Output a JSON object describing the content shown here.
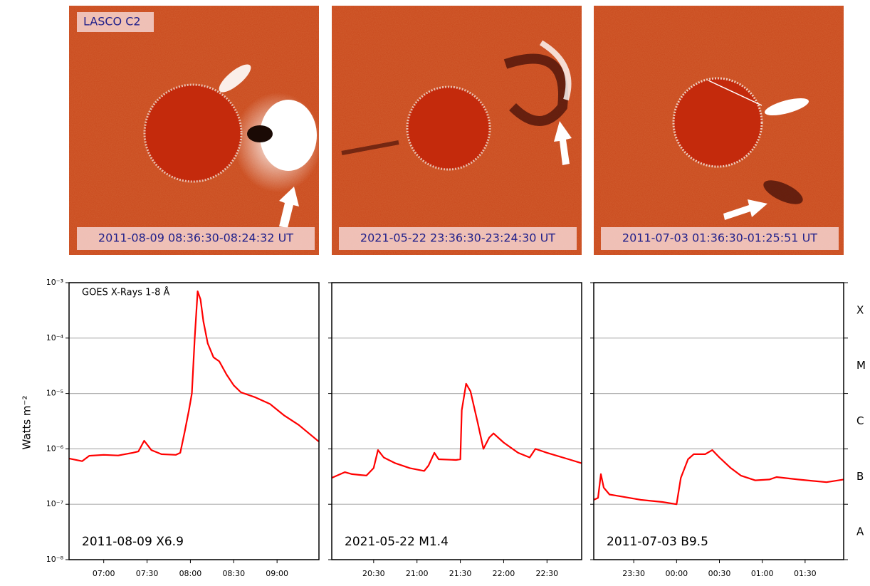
{
  "panels": [
    {
      "instrument": "LASCO C2",
      "timestamp": "2011-08-09 08:36:30-08:24:32 UT"
    },
    {
      "timestamp": "2021-05-22 23:36:30-23:24:30 UT"
    },
    {
      "timestamp": "2011-07-03 01:36:30-01:25:51 UT"
    }
  ],
  "chart_data": [
    {
      "type": "line",
      "annotation": "GOES X-Rays 1-8 Å",
      "label": "2011-08-09 X6.9",
      "ylabel": "Watts m⁻²",
      "log_scale": true,
      "grid": true,
      "color": "#ff0000",
      "ylim": [
        1e-08,
        0.001
      ],
      "yticks": [
        {
          "value": 1e-08,
          "label": "10⁻⁸"
        },
        {
          "value": 1e-07,
          "label": "10⁻⁷"
        },
        {
          "value": 1e-06,
          "label": "10⁻⁶"
        },
        {
          "value": 1e-05,
          "label": "10⁻⁵"
        },
        {
          "value": 0.0001,
          "label": "10⁻⁴"
        },
        {
          "value": 0.001,
          "label": "10⁻³"
        }
      ],
      "xlim": [
        "06:36",
        "09:29"
      ],
      "xticks": [
        "07:00",
        "07:30",
        "08:00",
        "08:30",
        "09:00"
      ],
      "x": [
        "06:36",
        "06:45",
        "06:50",
        "07:00",
        "07:10",
        "07:20",
        "07:24",
        "07:28",
        "07:33",
        "07:40",
        "07:50",
        "07:53",
        "07:56",
        "07:59",
        "08:01",
        "08:03",
        "08:05",
        "08:07",
        "08:09",
        "08:12",
        "08:16",
        "08:20",
        "08:25",
        "08:30",
        "08:35",
        "08:45",
        "08:55",
        "09:05",
        "09:15",
        "09:29"
      ],
      "values": [
        6.7e-07,
        6e-07,
        7.5e-07,
        7.8e-07,
        7.6e-07,
        8.5e-07,
        9e-07,
        1.4e-06,
        9.5e-07,
        8e-07,
        7.8e-07,
        8.5e-07,
        2e-06,
        5e-06,
        1e-05,
        0.0001,
        0.0007,
        0.0005,
        0.0002,
        8e-05,
        4.5e-05,
        3.8e-05,
        2.2e-05,
        1.4e-05,
        1.05e-05,
        8.5e-06,
        6.5e-06,
        4e-06,
        2.7e-06,
        1.35e-06
      ]
    },
    {
      "type": "line",
      "label": "2021-05-22 M1.4",
      "log_scale": true,
      "grid": true,
      "color": "#ff0000",
      "ylim": [
        1e-08,
        0.001
      ],
      "xlim": [
        "20:01",
        "22:54"
      ],
      "xticks": [
        "20:30",
        "21:00",
        "21:30",
        "22:00",
        "22:30"
      ],
      "x": [
        "20:01",
        "20:10",
        "20:15",
        "20:25",
        "20:30",
        "20:33",
        "20:37",
        "20:45",
        "20:55",
        "21:05",
        "21:08",
        "21:12",
        "21:15",
        "21:27",
        "21:30",
        "21:31",
        "21:34",
        "21:37",
        "21:42",
        "21:46",
        "21:50",
        "21:53",
        "22:00",
        "22:10",
        "22:18",
        "22:22",
        "22:30",
        "22:45",
        "22:54"
      ],
      "values": [
        3e-07,
        3.8e-07,
        3.5e-07,
        3.3e-07,
        4.5e-07,
        9.5e-07,
        7e-07,
        5.5e-07,
        4.5e-07,
        4e-07,
        5e-07,
        8.5e-07,
        6.5e-07,
        6.3e-07,
        6.5e-07,
        5e-06,
        1.5e-05,
        1.1e-05,
        3e-06,
        1e-06,
        1.6e-06,
        1.9e-06,
        1.3e-06,
        8.5e-07,
        7e-07,
        1e-06,
        8.5e-07,
        6.5e-07,
        5.5e-07
      ]
    },
    {
      "type": "line",
      "label": "2011-07-03 B9.5",
      "log_scale": true,
      "grid": true,
      "color": "#ff0000",
      "ylim": [
        1e-08,
        0.001
      ],
      "y2ticks": [
        {
          "value": 0.000316,
          "label": "X"
        },
        {
          "value": 3.16e-05,
          "label": "M"
        },
        {
          "value": 3.16e-06,
          "label": "C"
        },
        {
          "value": 3.16e-07,
          "label": "B"
        },
        {
          "value": 3.16e-08,
          "label": "A"
        }
      ],
      "xlim": [
        "23:02",
        "01:57"
      ],
      "xticks": [
        "23:30",
        "00:00",
        "00:30",
        "01:00",
        "01:30"
      ],
      "x": [
        "23:02",
        "23:05",
        "23:07",
        "23:09",
        "23:13",
        "23:20",
        "23:35",
        "23:50",
        "00:00",
        "00:03",
        "00:08",
        "00:12",
        "00:20",
        "00:25",
        "00:30",
        "00:38",
        "00:45",
        "00:55",
        "01:05",
        "01:10",
        "01:25",
        "01:45",
        "01:57"
      ],
      "values": [
        1.2e-07,
        1.3e-07,
        3.5e-07,
        2e-07,
        1.5e-07,
        1.4e-07,
        1.2e-07,
        1.1e-07,
        1e-07,
        3e-07,
        6.5e-07,
        8e-07,
        8e-07,
        9.5e-07,
        7e-07,
        4.5e-07,
        3.3e-07,
        2.7e-07,
        2.8e-07,
        3.1e-07,
        2.8e-07,
        2.5e-07,
        2.8e-07
      ]
    }
  ]
}
